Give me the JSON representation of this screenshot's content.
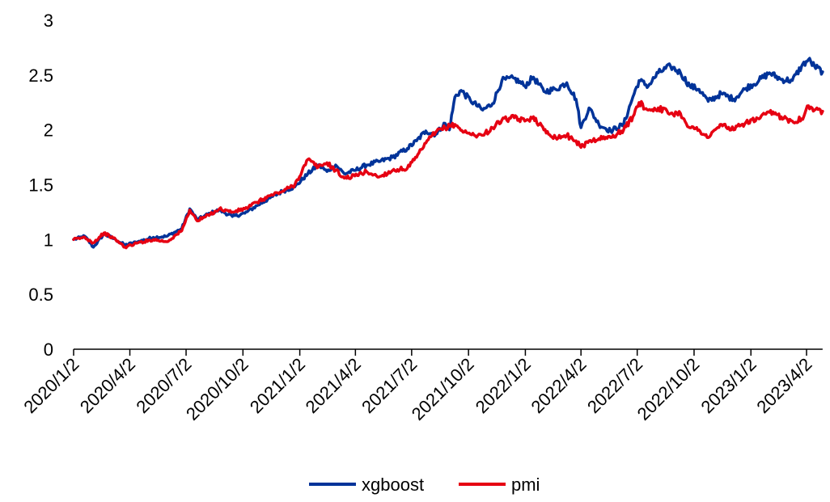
{
  "chart_data": {
    "type": "line",
    "title": "",
    "xlabel": "",
    "ylabel": "",
    "ylim": [
      0,
      3
    ],
    "yticks": [
      "0",
      "0.5",
      "1",
      "1.5",
      "2",
      "2.5",
      "3"
    ],
    "xlim": [
      "2020-01-02",
      "2023-04-28"
    ],
    "xticks": [
      {
        "label": "2020/1/2",
        "date": "2020-01-02"
      },
      {
        "label": "2020/4/2",
        "date": "2020-04-02"
      },
      {
        "label": "2020/7/2",
        "date": "2020-07-02"
      },
      {
        "label": "2020/10/2",
        "date": "2020-10-02"
      },
      {
        "label": "2021/1/2",
        "date": "2021-01-02"
      },
      {
        "label": "2021/4/2",
        "date": "2021-04-02"
      },
      {
        "label": "2021/7/2",
        "date": "2021-07-02"
      },
      {
        "label": "2021/10/2",
        "date": "2021-10-02"
      },
      {
        "label": "2022/1/2",
        "date": "2022-01-02"
      },
      {
        "label": "2022/4/2",
        "date": "2022-04-02"
      },
      {
        "label": "2022/7/2",
        "date": "2022-07-02"
      },
      {
        "label": "2022/10/2",
        "date": "2022-10-02"
      },
      {
        "label": "2023/1/2",
        "date": "2023-01-02"
      },
      {
        "label": "2023/4/2",
        "date": "2023-04-02"
      }
    ],
    "grid": false,
    "legend_position": "bottom-center",
    "series": [
      {
        "name": "xgboost",
        "color": "#003399",
        "points": [
          [
            "2020-01-02",
            1.0
          ],
          [
            "2020-01-20",
            1.03
          ],
          [
            "2020-02-03",
            0.93
          ],
          [
            "2020-02-20",
            1.05
          ],
          [
            "2020-03-10",
            1.0
          ],
          [
            "2020-03-25",
            0.95
          ],
          [
            "2020-04-15",
            0.98
          ],
          [
            "2020-05-10",
            1.02
          ],
          [
            "2020-06-01",
            1.03
          ],
          [
            "2020-06-25",
            1.1
          ],
          [
            "2020-07-08",
            1.28
          ],
          [
            "2020-07-20",
            1.18
          ],
          [
            "2020-08-10",
            1.24
          ],
          [
            "2020-08-25",
            1.27
          ],
          [
            "2020-09-15",
            1.21
          ],
          [
            "2020-10-05",
            1.24
          ],
          [
            "2020-10-25",
            1.31
          ],
          [
            "2020-11-15",
            1.38
          ],
          [
            "2020-12-05",
            1.44
          ],
          [
            "2020-12-25",
            1.48
          ],
          [
            "2021-01-15",
            1.6
          ],
          [
            "2021-02-01",
            1.68
          ],
          [
            "2021-02-15",
            1.62
          ],
          [
            "2021-03-01",
            1.68
          ],
          [
            "2021-03-15",
            1.6
          ],
          [
            "2021-04-01",
            1.63
          ],
          [
            "2021-04-20",
            1.68
          ],
          [
            "2021-05-10",
            1.71
          ],
          [
            "2021-06-01",
            1.75
          ],
          [
            "2021-06-25",
            1.83
          ],
          [
            "2021-07-10",
            1.9
          ],
          [
            "2021-07-25",
            1.99
          ],
          [
            "2021-08-10",
            1.96
          ],
          [
            "2021-08-25",
            2.06
          ],
          [
            "2021-09-01",
            2.0
          ],
          [
            "2021-09-10",
            2.3
          ],
          [
            "2021-09-20",
            2.36
          ],
          [
            "2021-10-05",
            2.27
          ],
          [
            "2021-10-25",
            2.18
          ],
          [
            "2021-11-10",
            2.24
          ],
          [
            "2021-11-25",
            2.45
          ],
          [
            "2021-12-15",
            2.47
          ],
          [
            "2022-01-01",
            2.4
          ],
          [
            "2022-01-15",
            2.48
          ],
          [
            "2022-02-01",
            2.35
          ],
          [
            "2022-02-20",
            2.37
          ],
          [
            "2022-03-10",
            2.43
          ],
          [
            "2022-03-25",
            2.28
          ],
          [
            "2022-04-02",
            2.02
          ],
          [
            "2022-04-15",
            2.2
          ],
          [
            "2022-05-01",
            2.05
          ],
          [
            "2022-05-20",
            1.99
          ],
          [
            "2022-06-10",
            2.05
          ],
          [
            "2022-06-25",
            2.3
          ],
          [
            "2022-07-05",
            2.45
          ],
          [
            "2022-07-20",
            2.4
          ],
          [
            "2022-08-05",
            2.52
          ],
          [
            "2022-08-25",
            2.58
          ],
          [
            "2022-09-10",
            2.52
          ],
          [
            "2022-09-25",
            2.4
          ],
          [
            "2022-10-10",
            2.37
          ],
          [
            "2022-10-25",
            2.26
          ],
          [
            "2022-11-15",
            2.33
          ],
          [
            "2022-12-05",
            2.28
          ],
          [
            "2022-12-25",
            2.38
          ],
          [
            "2023-01-15",
            2.45
          ],
          [
            "2023-02-01",
            2.52
          ],
          [
            "2023-02-20",
            2.46
          ],
          [
            "2023-03-10",
            2.45
          ],
          [
            "2023-03-25",
            2.58
          ],
          [
            "2023-04-05",
            2.64
          ],
          [
            "2023-04-15",
            2.58
          ],
          [
            "2023-04-28",
            2.53
          ]
        ]
      },
      {
        "name": "pmi",
        "color": "#e60012",
        "points": [
          [
            "2020-01-02",
            1.0
          ],
          [
            "2020-01-20",
            1.02
          ],
          [
            "2020-02-03",
            0.97
          ],
          [
            "2020-02-20",
            1.06
          ],
          [
            "2020-03-10",
            1.0
          ],
          [
            "2020-03-25",
            0.93
          ],
          [
            "2020-04-15",
            0.97
          ],
          [
            "2020-05-10",
            1.0
          ],
          [
            "2020-06-01",
            0.98
          ],
          [
            "2020-06-25",
            1.08
          ],
          [
            "2020-07-08",
            1.27
          ],
          [
            "2020-07-20",
            1.17
          ],
          [
            "2020-08-10",
            1.23
          ],
          [
            "2020-08-25",
            1.28
          ],
          [
            "2020-09-15",
            1.25
          ],
          [
            "2020-10-05",
            1.28
          ],
          [
            "2020-10-25",
            1.34
          ],
          [
            "2020-11-15",
            1.4
          ],
          [
            "2020-12-05",
            1.44
          ],
          [
            "2020-12-25",
            1.5
          ],
          [
            "2021-01-15",
            1.73
          ],
          [
            "2021-02-01",
            1.66
          ],
          [
            "2021-02-15",
            1.7
          ],
          [
            "2021-03-01",
            1.63
          ],
          [
            "2021-03-15",
            1.56
          ],
          [
            "2021-04-01",
            1.58
          ],
          [
            "2021-04-20",
            1.62
          ],
          [
            "2021-05-10",
            1.57
          ],
          [
            "2021-06-01",
            1.63
          ],
          [
            "2021-06-25",
            1.65
          ],
          [
            "2021-07-10",
            1.75
          ],
          [
            "2021-07-25",
            1.88
          ],
          [
            "2021-08-10",
            1.98
          ],
          [
            "2021-08-25",
            2.02
          ],
          [
            "2021-09-10",
            2.05
          ],
          [
            "2021-09-25",
            1.98
          ],
          [
            "2021-10-05",
            1.96
          ],
          [
            "2021-10-25",
            1.95
          ],
          [
            "2021-11-10",
            2.02
          ],
          [
            "2021-11-25",
            2.09
          ],
          [
            "2021-12-15",
            2.11
          ],
          [
            "2022-01-01",
            2.08
          ],
          [
            "2022-01-15",
            2.12
          ],
          [
            "2022-02-01",
            2.0
          ],
          [
            "2022-02-20",
            1.93
          ],
          [
            "2022-03-10",
            1.95
          ],
          [
            "2022-03-25",
            1.9
          ],
          [
            "2022-04-02",
            1.84
          ],
          [
            "2022-04-15",
            1.9
          ],
          [
            "2022-05-01",
            1.92
          ],
          [
            "2022-05-20",
            1.93
          ],
          [
            "2022-06-10",
            2.0
          ],
          [
            "2022-06-25",
            2.12
          ],
          [
            "2022-07-05",
            2.25
          ],
          [
            "2022-07-20",
            2.18
          ],
          [
            "2022-08-05",
            2.2
          ],
          [
            "2022-08-25",
            2.15
          ],
          [
            "2022-09-10",
            2.15
          ],
          [
            "2022-09-25",
            2.02
          ],
          [
            "2022-10-10",
            2.0
          ],
          [
            "2022-10-25",
            1.93
          ],
          [
            "2022-11-15",
            2.05
          ],
          [
            "2022-12-05",
            2.0
          ],
          [
            "2022-12-25",
            2.07
          ],
          [
            "2023-01-15",
            2.1
          ],
          [
            "2023-02-01",
            2.16
          ],
          [
            "2023-02-20",
            2.12
          ],
          [
            "2023-03-10",
            2.08
          ],
          [
            "2023-03-25",
            2.1
          ],
          [
            "2023-04-05",
            2.22
          ],
          [
            "2023-04-15",
            2.18
          ],
          [
            "2023-04-28",
            2.17
          ]
        ]
      }
    ]
  }
}
